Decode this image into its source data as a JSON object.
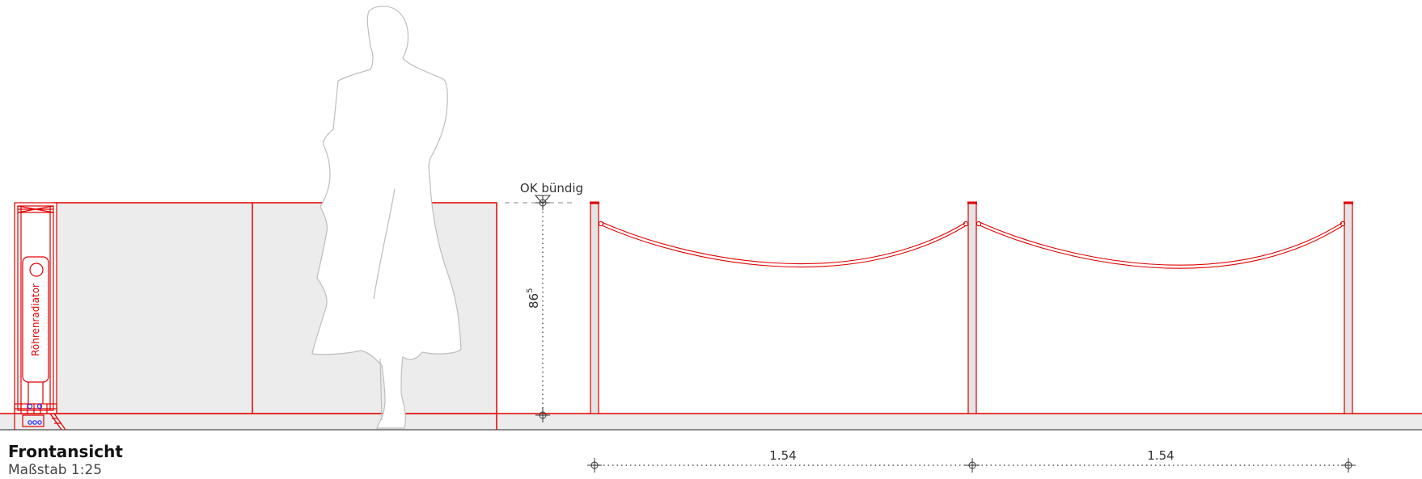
{
  "view": {
    "title": "Frontansicht",
    "scale": "Maßstab 1:25"
  },
  "labels": {
    "radiator": "Röhrenradiator",
    "top_edge": "OK bündig",
    "height_main": "86",
    "height_sup": "5",
    "span_1": "1.54",
    "span_2": "1.54"
  },
  "colors": {
    "line_red": "#e00000",
    "fill_grey": "#ececec",
    "dim_dark": "#333333",
    "pipe_blue": "#2a2aff"
  }
}
